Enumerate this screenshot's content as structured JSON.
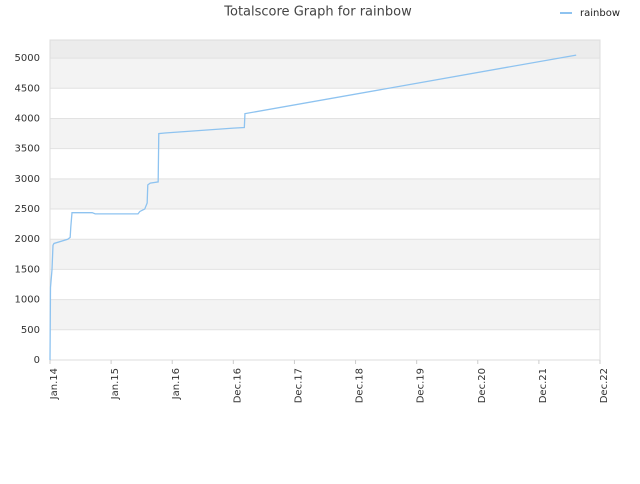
{
  "chart_data": {
    "type": "line",
    "title": "Totalscore Graph for rainbow",
    "x": [
      0,
      0.008,
      0.033,
      0.049,
      0.065,
      0.29,
      0.33,
      0.34,
      0.36,
      0.69,
      0.74,
      1.44,
      1.47,
      1.55,
      1.59,
      1.6,
      1.64,
      1.77,
      1.78,
      1.88,
      3.0,
      3.18,
      3.19,
      8.61
    ],
    "series": [
      {
        "name": "rainbow",
        "color": "#8ec3f0",
        "values": [
          0,
          1200,
          1500,
          1900,
          1930,
          2000,
          2030,
          2200,
          2440,
          2440,
          2420,
          2420,
          2460,
          2500,
          2600,
          2900,
          2930,
          2950,
          3750,
          3760,
          3840,
          3850,
          4080,
          5050
        ]
      }
    ],
    "xlim": [
      0,
      9
    ],
    "xticks": [
      {
        "value": 0,
        "label": "Jan.14"
      },
      {
        "value": 1,
        "label": "Jan.15"
      },
      {
        "value": 2,
        "label": "Jan.16"
      },
      {
        "value": 3,
        "label": "Dec.16"
      },
      {
        "value": 4,
        "label": "Dec.17"
      },
      {
        "value": 5,
        "label": "Dec.18"
      },
      {
        "value": 6,
        "label": "Dec.19"
      },
      {
        "value": 7,
        "label": "Dec.20"
      },
      {
        "value": 8,
        "label": "Dec.21"
      },
      {
        "value": 9,
        "label": "Dec.22"
      }
    ],
    "ylim": [
      0,
      5300
    ],
    "yticks": [
      0,
      500,
      1000,
      1500,
      2000,
      2500,
      3000,
      3500,
      4000,
      4500,
      5000
    ],
    "grid": true,
    "legend": "top-right"
  }
}
